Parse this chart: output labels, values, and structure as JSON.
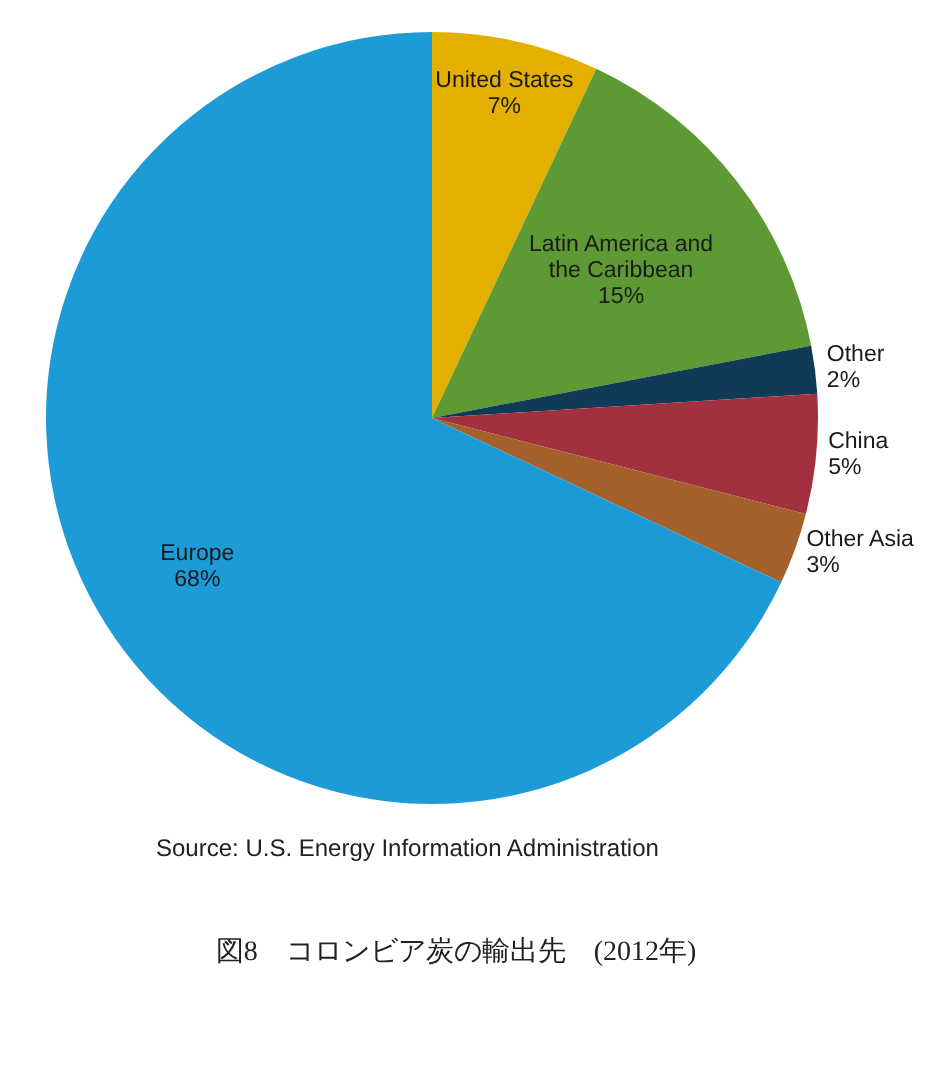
{
  "chart_data": {
    "type": "pie",
    "title": "図8　コロンビア炭の輸出先　(2012年)",
    "categories": [
      "United States",
      "Latin America and the Caribbean",
      "Other",
      "China",
      "Other Asia",
      "Europe"
    ],
    "values": [
      7,
      15,
      2,
      5,
      3,
      68
    ],
    "value_labels": [
      "7%",
      "15%",
      "2%",
      "5%",
      "3%",
      "68%"
    ],
    "colors": [
      "#e3b000",
      "#5d9a33",
      "#0f3b57",
      "#a3303f",
      "#a5612b",
      "#1d9bd7"
    ],
    "legend": false,
    "annotations": [
      "Source:  U.S. Energy Information Administration"
    ]
  }
}
